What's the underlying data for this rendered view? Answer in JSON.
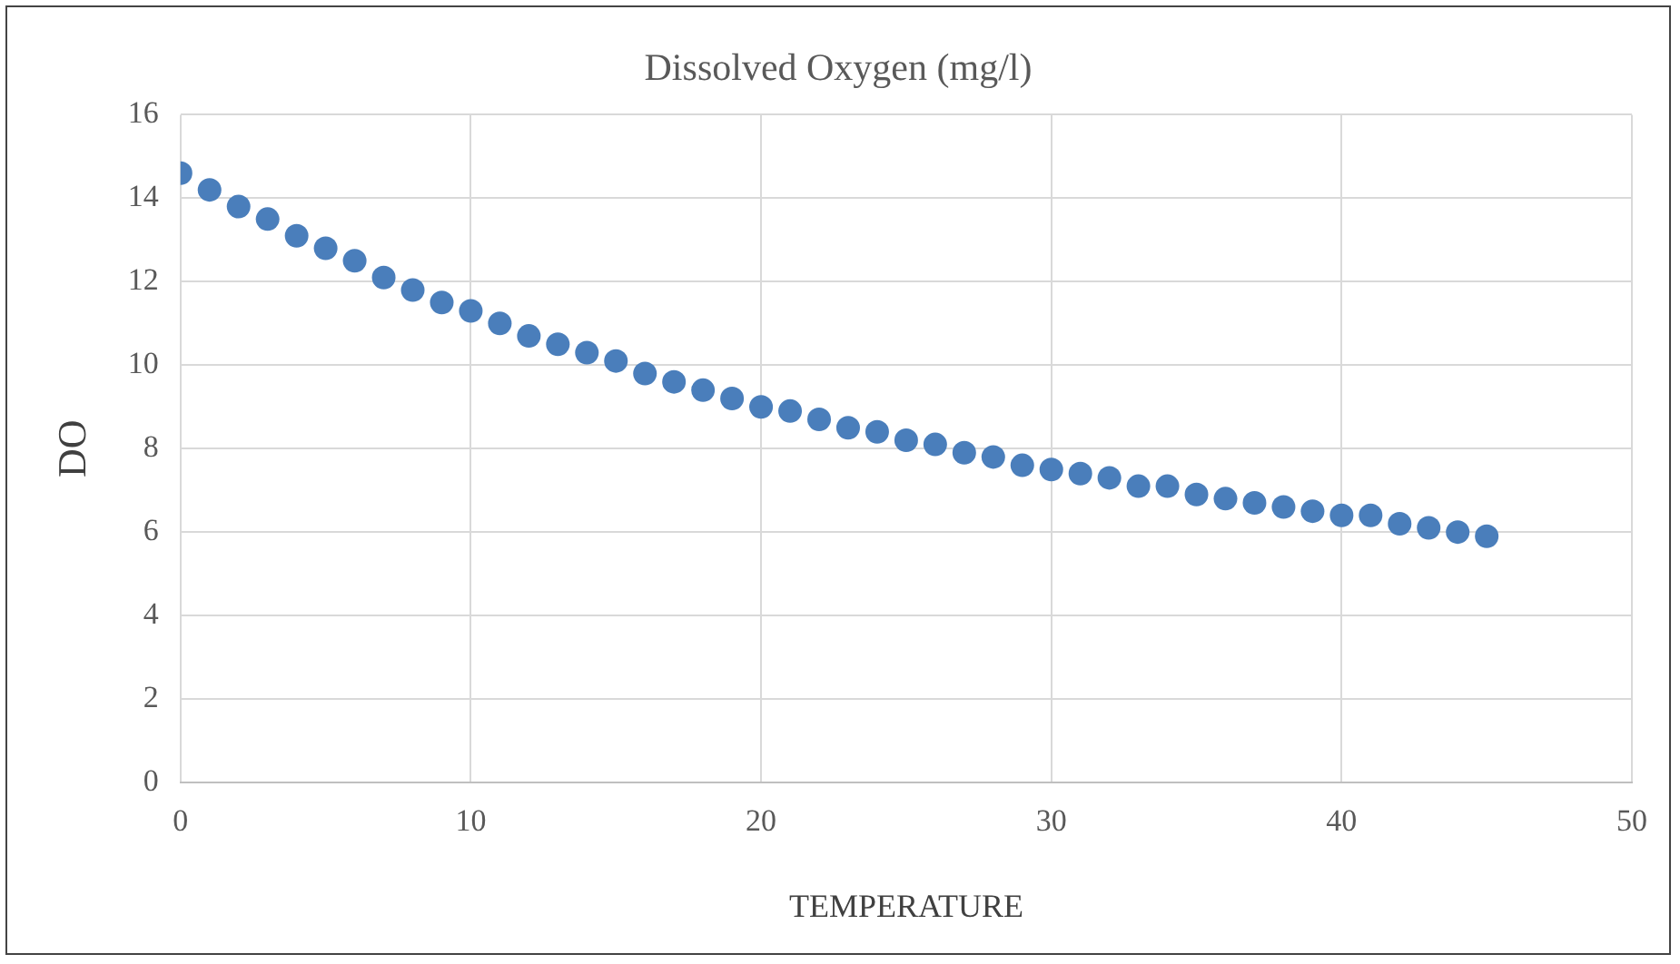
{
  "chart_data": {
    "type": "scatter",
    "title": "Dissolved Oxygen (mg/l)",
    "xlabel": "TEMPERATURE",
    "ylabel": "DO",
    "x": [
      0,
      1,
      2,
      3,
      4,
      5,
      6,
      7,
      8,
      9,
      10,
      11,
      12,
      13,
      14,
      15,
      16,
      17,
      18,
      19,
      20,
      21,
      22,
      23,
      24,
      25,
      26,
      27,
      28,
      29,
      30,
      31,
      32,
      33,
      34,
      35,
      36,
      37,
      38,
      39,
      40,
      41,
      42,
      43,
      44,
      45
    ],
    "series": [
      {
        "color": "#4a7ebb",
        "values": [
          14.6,
          14.2,
          13.8,
          13.5,
          13.1,
          12.8,
          12.5,
          12.1,
          11.8,
          11.5,
          11.3,
          11.0,
          10.7,
          10.5,
          10.3,
          10.1,
          9.8,
          9.6,
          9.4,
          9.2,
          9.0,
          8.9,
          8.7,
          8.5,
          8.4,
          8.2,
          8.1,
          7.9,
          7.8,
          7.6,
          7.5,
          7.4,
          7.3,
          7.1,
          7.1,
          6.9,
          6.8,
          6.7,
          6.6,
          6.5,
          6.4,
          6.4,
          6.2,
          6.1,
          6.0,
          5.9
        ]
      }
    ],
    "xlim": [
      0,
      50
    ],
    "xticks": [
      0,
      10,
      20,
      30,
      40,
      50
    ],
    "ylim": [
      0,
      16
    ],
    "yticks": [
      0,
      2,
      4,
      6,
      8,
      10,
      12,
      14,
      16
    ],
    "grid": true,
    "legend": false,
    "marker": "circle"
  }
}
